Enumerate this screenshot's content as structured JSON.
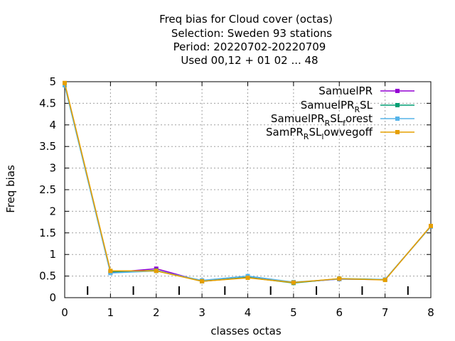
{
  "chart_data": {
    "type": "line",
    "title_lines": [
      "Freq bias  for Cloud cover (octas)",
      "Selection: Sweden     93 stations",
      "Period: 20220702-20220709",
      "Used  00,12  + 01 02 ... 48"
    ],
    "xlabel": "classes octas",
    "ylabel": "Freq bias",
    "x": [
      0,
      1,
      2,
      3,
      4,
      5,
      6,
      7,
      8
    ],
    "xlim": [
      0,
      8
    ],
    "ylim": [
      0,
      5
    ],
    "xticks": [
      "0",
      "1",
      "2",
      "3",
      "4",
      "5",
      "6",
      "7",
      "8"
    ],
    "yticks": [
      "0",
      "0.5",
      "1",
      "1.5",
      "2",
      "2.5",
      "3",
      "3.5",
      "4",
      "4.5",
      "5"
    ],
    "grid": true,
    "legend_position": "top-right",
    "minor_ticks_x": [
      0.5,
      1.5,
      2.5,
      3.5,
      4.5,
      5.5,
      6.5,
      7.5
    ],
    "series": [
      {
        "name": "SamuelPR",
        "legend_parts": [
          [
            "SamuelPR",
            ""
          ]
        ],
        "color": "#9400d3",
        "values": [
          4.95,
          0.58,
          0.67,
          0.38,
          0.47,
          0.35,
          0.43,
          0.42,
          1.65
        ]
      },
      {
        "name": "SamuelPR_RSL",
        "legend_parts": [
          [
            "SamuelPR",
            "R"
          ],
          [
            "SL",
            ""
          ]
        ],
        "color": "#009e73",
        "values": [
          4.92,
          0.6,
          0.63,
          0.38,
          0.47,
          0.34,
          0.44,
          0.42,
          1.65
        ]
      },
      {
        "name": "SamuelPR_RSL_forest",
        "legend_parts": [
          [
            "SamuelPR",
            "R"
          ],
          [
            "SL",
            "f"
          ],
          [
            "orest",
            ""
          ]
        ],
        "color": "#56b4e9",
        "values": [
          4.92,
          0.57,
          0.62,
          0.4,
          0.5,
          0.36,
          0.43,
          0.42,
          1.65
        ]
      },
      {
        "name": "SamPR_RSL_lowvegoff",
        "legend_parts": [
          [
            "SamPR",
            "R"
          ],
          [
            "SL",
            "l"
          ],
          [
            "owvegoff",
            ""
          ]
        ],
        "color": "#e69f00",
        "values": [
          4.97,
          0.62,
          0.62,
          0.38,
          0.46,
          0.35,
          0.44,
          0.41,
          1.66
        ]
      }
    ]
  }
}
